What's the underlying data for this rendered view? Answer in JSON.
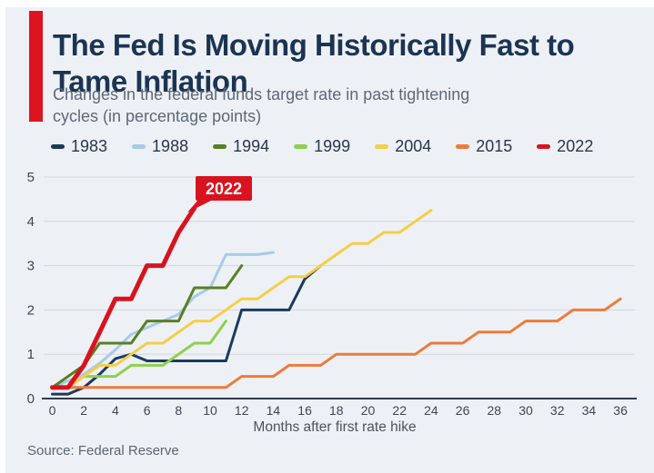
{
  "page": {
    "title": "The Fed Is Moving Historically Fast to Tame Inflation",
    "subtitle": "Changes in the federal funds target rate in past tightening cycles (in percentage points)",
    "source": "Source: Federal Reserve",
    "accent_color": "#dc1420",
    "background_color": "#edf1f6"
  },
  "chart_data": {
    "type": "line",
    "title": "Changes in the federal funds target rate in past tightening cycles (in percentage points)",
    "xlabel": "Months after first rate hike",
    "ylabel": "",
    "x_ticks": [
      0,
      2,
      4,
      6,
      8,
      10,
      12,
      14,
      16,
      18,
      20,
      22,
      24,
      26,
      28,
      30,
      32,
      34,
      36
    ],
    "y_ticks": [
      0,
      1,
      2,
      3,
      4,
      5
    ],
    "xlim": [
      0,
      36
    ],
    "ylim": [
      0,
      5
    ],
    "grid": true,
    "legend_position": "top",
    "grid_color": "#d3d7dc",
    "axis_color": "#303b47",
    "tick_label_color": "#3c4653",
    "annotation": {
      "text": "2022",
      "series": "2022",
      "box_color": "#d8131f",
      "text_color": "#ffffff"
    },
    "x_step_months": 1,
    "series": [
      {
        "name": "1983",
        "color": "#1c3a5e",
        "width": 3,
        "values": [
          0.1,
          0.1,
          0.25,
          0.55,
          0.9,
          1.0,
          0.85,
          0.85,
          0.85,
          0.85,
          0.85,
          0.85,
          2.0,
          2.0,
          2.0,
          2.0,
          2.7,
          3.0
        ]
      },
      {
        "name": "1988",
        "color": "#a7cbe9",
        "width": 3,
        "values": [
          0.25,
          0.4,
          0.55,
          0.8,
          1.1,
          1.45,
          1.6,
          1.75,
          1.9,
          2.3,
          2.5,
          3.25,
          3.25,
          3.25,
          3.3
        ]
      },
      {
        "name": "1994",
        "color": "#5a7f23",
        "width": 3,
        "values": [
          0.25,
          0.5,
          0.75,
          1.25,
          1.25,
          1.25,
          1.75,
          1.75,
          1.75,
          2.5,
          2.5,
          2.5,
          3.0
        ]
      },
      {
        "name": "1999",
        "color": "#8ed04d",
        "width": 3,
        "values": [
          0.25,
          0.25,
          0.5,
          0.5,
          0.5,
          0.75,
          0.75,
          0.75,
          1.0,
          1.25,
          1.25,
          1.75
        ]
      },
      {
        "name": "2004",
        "color": "#f6ce45",
        "width": 3,
        "values": [
          0.25,
          0.25,
          0.5,
          0.75,
          0.75,
          1.0,
          1.25,
          1.25,
          1.5,
          1.75,
          1.75,
          2.0,
          2.25,
          2.25,
          2.5,
          2.75,
          2.75,
          3.0,
          3.25,
          3.5,
          3.5,
          3.75,
          3.75,
          4.0,
          4.25
        ]
      },
      {
        "name": "2015",
        "color": "#ee7b3a",
        "width": 3,
        "values": [
          0.25,
          0.25,
          0.25,
          0.25,
          0.25,
          0.25,
          0.25,
          0.25,
          0.25,
          0.25,
          0.25,
          0.25,
          0.5,
          0.5,
          0.5,
          0.75,
          0.75,
          0.75,
          1.0,
          1.0,
          1.0,
          1.0,
          1.0,
          1.0,
          1.25,
          1.25,
          1.25,
          1.5,
          1.5,
          1.5,
          1.75,
          1.75,
          1.75,
          2.0,
          2.0,
          2.0,
          2.25
        ]
      },
      {
        "name": "2022",
        "color": "#d8131f",
        "width": 5,
        "values": [
          0.25,
          0.25,
          0.75,
          1.5,
          2.25,
          2.25,
          3.0,
          3.0,
          3.75,
          4.3
        ]
      }
    ]
  }
}
